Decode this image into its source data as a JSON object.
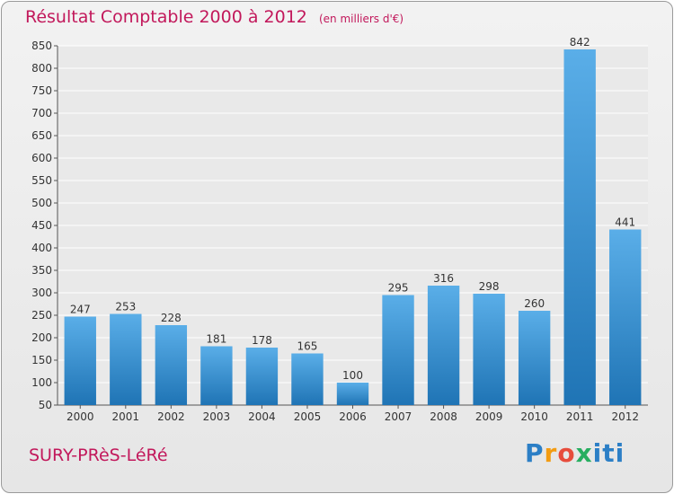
{
  "header": {
    "title": "Résultat Comptable 2000 à 2012",
    "subtitle": "(en milliers d'€)"
  },
  "footer": {
    "commune": "SURY-PRèS-LéRé",
    "logo_parts": [
      "P",
      "r",
      "o",
      "x",
      "iti"
    ]
  },
  "colors": {
    "title": "#c2185b",
    "bar_top": "#5aaee8",
    "bar_bottom": "#1f74b5",
    "grid": "#ffffff",
    "plot_bg": "#e9e9e9"
  },
  "chart_data": {
    "type": "bar",
    "title": "Résultat Comptable 2000 à 2012",
    "subtitle": "(en milliers d'€)",
    "categories": [
      "2000",
      "2001",
      "2002",
      "2003",
      "2004",
      "2005",
      "2006",
      "2007",
      "2008",
      "2009",
      "2010",
      "2011",
      "2012"
    ],
    "values": [
      247,
      253,
      228,
      181,
      178,
      165,
      100,
      295,
      316,
      298,
      260,
      842,
      441
    ],
    "ylim": [
      50,
      850
    ],
    "yticks": [
      50,
      100,
      150,
      200,
      250,
      300,
      350,
      400,
      450,
      500,
      550,
      600,
      650,
      700,
      750,
      800,
      850
    ],
    "grid": true,
    "data_labels": true
  }
}
